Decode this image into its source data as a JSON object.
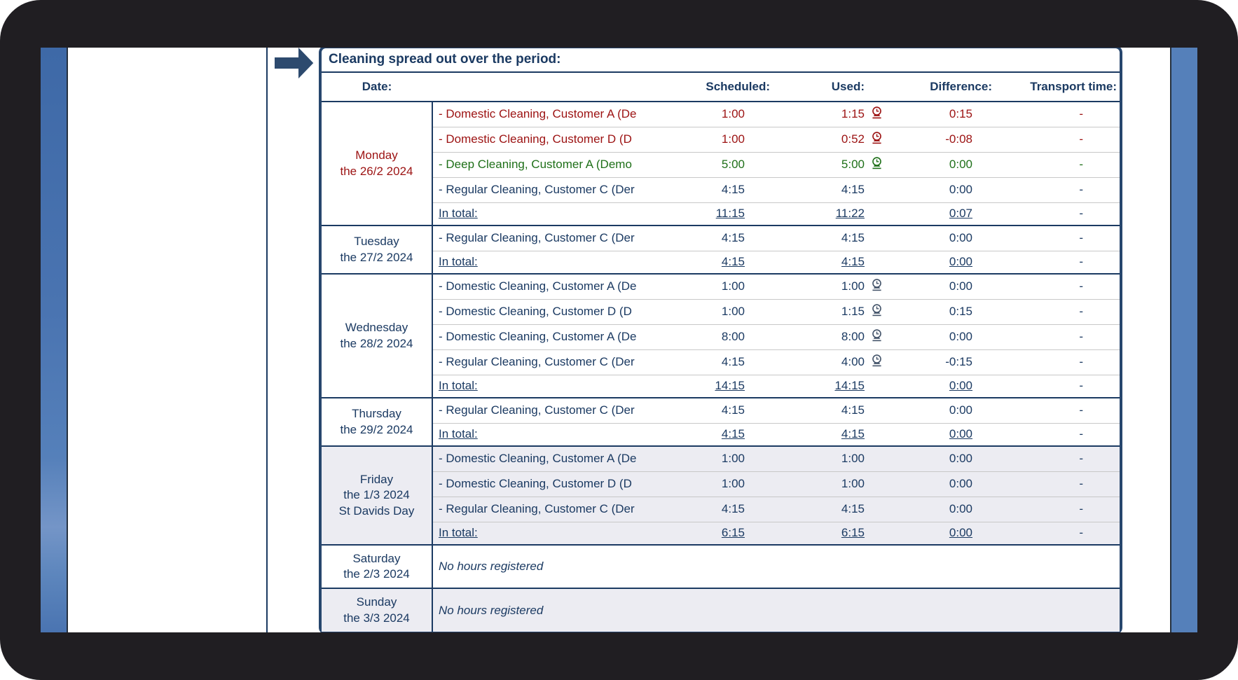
{
  "title": "Cleaning spread out over the period:",
  "table": {
    "headers": {
      "date": "Date:",
      "activity": "",
      "scheduled": "Scheduled:",
      "used": "Used:",
      "difference": "Difference:",
      "transport": "Transport time:"
    },
    "total_label": "In total:",
    "days": [
      {
        "date_lines": [
          "Monday",
          "the 26/2 2024"
        ],
        "highlight": false,
        "activities": [
          {
            "text": "- Domestic Cleaning, Customer A (De",
            "color": "red",
            "scheduled": "1:00",
            "used": "1:15",
            "used_icon": true,
            "difference": "0:15",
            "transport": "-"
          },
          {
            "text": "- Domestic Cleaning, Customer D (D",
            "color": "red",
            "scheduled": "1:00",
            "used": "0:52",
            "used_icon": true,
            "difference": "-0:08",
            "transport": "-"
          },
          {
            "text": "- Deep Cleaning, Customer A (Demo",
            "color": "green",
            "scheduled": "5:00",
            "used": "5:00",
            "used_icon": true,
            "difference": "0:00",
            "transport": "-"
          },
          {
            "text": "- Regular Cleaning, Customer C (Der",
            "color": "navy",
            "scheduled": "4:15",
            "used": "4:15",
            "used_icon": false,
            "difference": "0:00",
            "transport": "-"
          }
        ],
        "total": {
          "scheduled": "11:15",
          "used": "11:22",
          "difference": "0:07",
          "transport": "-"
        }
      },
      {
        "date_lines": [
          "Tuesday",
          "the 27/2 2024"
        ],
        "highlight": false,
        "activities": [
          {
            "text": "- Regular Cleaning, Customer C (Der",
            "color": "navy",
            "scheduled": "4:15",
            "used": "4:15",
            "used_icon": false,
            "difference": "0:00",
            "transport": "-"
          }
        ],
        "total": {
          "scheduled": "4:15",
          "used": "4:15",
          "difference": "0:00",
          "transport": "-"
        }
      },
      {
        "date_lines": [
          "Wednesday",
          "the 28/2 2024"
        ],
        "highlight": false,
        "activities": [
          {
            "text": "- Domestic Cleaning, Customer A (De",
            "color": "navy",
            "scheduled": "1:00",
            "used": "1:00",
            "used_icon": true,
            "difference": "0:00",
            "transport": "-"
          },
          {
            "text": "- Domestic Cleaning, Customer D (D",
            "color": "navy",
            "scheduled": "1:00",
            "used": "1:15",
            "used_icon": true,
            "difference": "0:15",
            "transport": "-"
          },
          {
            "text": "- Domestic Cleaning, Customer A (De",
            "color": "navy",
            "scheduled": "8:00",
            "used": "8:00",
            "used_icon": true,
            "difference": "0:00",
            "transport": "-"
          },
          {
            "text": "- Regular Cleaning, Customer C (Der",
            "color": "navy",
            "scheduled": "4:15",
            "used": "4:00",
            "used_icon": true,
            "difference": "-0:15",
            "transport": "-"
          }
        ],
        "total": {
          "scheduled": "14:15",
          "used": "14:15",
          "difference": "0:00",
          "transport": "-"
        }
      },
      {
        "date_lines": [
          "Thursday",
          "the 29/2 2024"
        ],
        "highlight": false,
        "activities": [
          {
            "text": "- Regular Cleaning, Customer C (Der",
            "color": "navy",
            "scheduled": "4:15",
            "used": "4:15",
            "used_icon": false,
            "difference": "0:00",
            "transport": "-"
          }
        ],
        "total": {
          "scheduled": "4:15",
          "used": "4:15",
          "difference": "0:00",
          "transport": "-"
        }
      },
      {
        "date_lines": [
          "Friday",
          "the 1/3 2024",
          "St Davids Day"
        ],
        "highlight": true,
        "activities": [
          {
            "text": "- Domestic Cleaning, Customer A (De",
            "color": "navy",
            "scheduled": "1:00",
            "used": "1:00",
            "used_icon": false,
            "difference": "0:00",
            "transport": "-"
          },
          {
            "text": "- Domestic Cleaning, Customer D (D",
            "color": "navy",
            "scheduled": "1:00",
            "used": "1:00",
            "used_icon": false,
            "difference": "0:00",
            "transport": "-"
          },
          {
            "text": "- Regular Cleaning, Customer C (Der",
            "color": "navy",
            "scheduled": "4:15",
            "used": "4:15",
            "used_icon": false,
            "difference": "0:00",
            "transport": "-"
          }
        ],
        "total": {
          "scheduled": "6:15",
          "used": "6:15",
          "difference": "0:00",
          "transport": "-"
        }
      },
      {
        "date_lines": [
          "Saturday",
          "the 2/3 2024"
        ],
        "highlight": false,
        "no_hours": "No hours registered"
      },
      {
        "date_lines": [
          "Sunday",
          "the 3/3 2024"
        ],
        "highlight": true,
        "no_hours": "No hours registered"
      }
    ]
  },
  "colors": {
    "navy_text": "#1b3a62",
    "red_text": "#9c1212",
    "green_text": "#1f7019",
    "highlight_row": "#ececf2",
    "table_border": "#27466d",
    "sidebar_blue": "#5580ba",
    "frame_black": "#201e22"
  }
}
